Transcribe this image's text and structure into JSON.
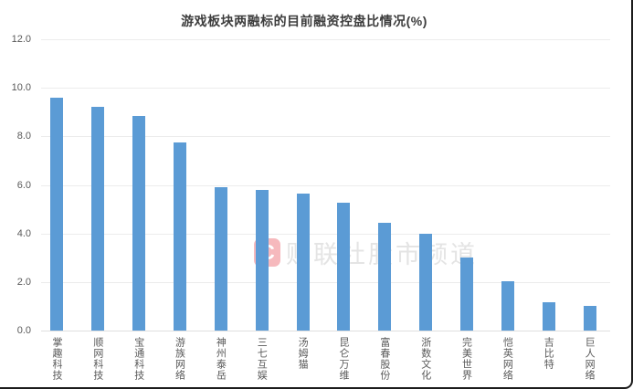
{
  "page": {
    "title": "游戏板块两融标的目前融资控盘比情况(%)"
  },
  "watermark": {
    "logo_letter": "C",
    "logo_name": "cailianshe-logo",
    "text": "财联社股市频道"
  },
  "chart_data": {
    "type": "bar",
    "title": "游戏板块两融标的目前融资控盘比情况(%)",
    "categories": [
      "掌趣科技",
      "顺网科技",
      "宝通科技",
      "游族网络",
      "神州泰岳",
      "三七互娱",
      "汤姆猫",
      "昆仑万维",
      "富春股份",
      "浙数文化",
      "完美世界",
      "恺英网络",
      "吉比特",
      "巨人网络"
    ],
    "values": [
      9.6,
      9.2,
      8.85,
      7.75,
      5.9,
      5.8,
      5.65,
      5.25,
      4.45,
      4.0,
      3.0,
      2.05,
      1.15,
      1.0
    ],
    "xlabel": "",
    "ylabel": "",
    "ylim": [
      0,
      12
    ],
    "ytick_step": 2,
    "ytick_labels": [
      "0.0",
      "2.0",
      "4.0",
      "6.0",
      "8.0",
      "10.0",
      "12.0"
    ],
    "grid": true,
    "legend": false,
    "bar_color": "#5b9bd5"
  },
  "colors": {
    "bar": "#5b9bd5",
    "title_text": "#3d3d3d",
    "axis_text": "#595959",
    "gridline": "#ececec",
    "watermark_text": "#e4e4e4",
    "watermark_logo_bg": "#f6b9bd",
    "frame_border": "#1c1c1c",
    "background": "#ffffff"
  }
}
